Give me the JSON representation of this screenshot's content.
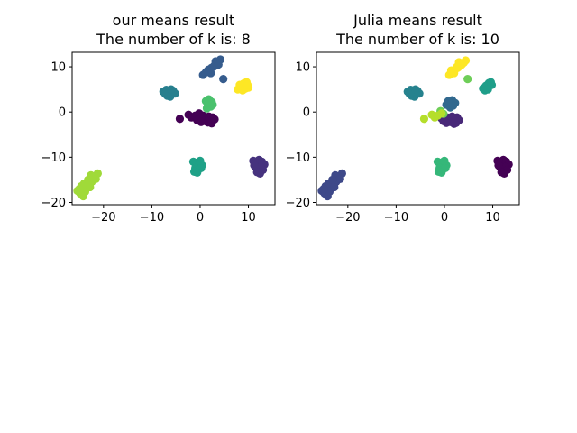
{
  "chart_data": [
    {
      "type": "scatter",
      "title_lines": [
        "our means result",
        "The number of k is: 8"
      ],
      "xlabel": "",
      "ylabel": "",
      "xlim": [
        -26.5,
        15.5
      ],
      "ylim": [
        -20.5,
        13.2
      ],
      "xticks": [
        -20,
        -10,
        0,
        10
      ],
      "yticks": [
        -20,
        -10,
        0,
        10
      ],
      "tick_labels_x": [
        "−20",
        "−10",
        "0",
        "10"
      ],
      "tick_labels_y": [
        "−20",
        "−10",
        "0",
        "10"
      ],
      "grid": false,
      "clusters": [
        {
          "color": "#440154",
          "x": [
            -4.2,
            -2.4,
            -1.8,
            -1.0,
            -0.2,
            0.4,
            1.0,
            1.6,
            2.2,
            2.6,
            0.6,
            -0.6,
            1.8,
            2.4,
            3.0,
            0.2
          ],
          "y": [
            -1.5,
            -0.6,
            -1.2,
            -0.8,
            -0.3,
            -1.6,
            -2.0,
            -2.3,
            -1.8,
            -1.2,
            -0.8,
            -1.8,
            -1.0,
            -2.5,
            -1.6,
            -2.2
          ]
        },
        {
          "color": "#46327e",
          "x": [
            11.0,
            11.6,
            12.2,
            12.8,
            13.3,
            11.4,
            12.0,
            12.6,
            13.0,
            11.8,
            12.4,
            11.2
          ],
          "y": [
            -10.8,
            -11.2,
            -10.6,
            -11.0,
            -11.6,
            -12.0,
            -12.6,
            -12.2,
            -12.8,
            -13.3,
            -13.6,
            -11.8
          ]
        },
        {
          "color": "#365c8d",
          "x": [
            0.6,
            1.2,
            1.8,
            2.4,
            3.0,
            3.6,
            4.2,
            2.2,
            1.6,
            3.2,
            2.8,
            4.8,
            3.8
          ],
          "y": [
            8.2,
            8.8,
            9.4,
            9.8,
            10.3,
            10.9,
            11.6,
            8.6,
            9.2,
            11.2,
            10.0,
            7.3,
            10.5
          ]
        },
        {
          "color": "#277f8e",
          "x": [
            -7.6,
            -7.0,
            -6.4,
            -5.8,
            -5.2,
            -6.8,
            -6.2,
            -5.6,
            -7.2,
            -6.0
          ],
          "y": [
            4.5,
            4.9,
            4.2,
            4.6,
            4.1,
            3.6,
            3.4,
            4.7,
            4.0,
            5.0
          ]
        },
        {
          "color": "#1fa187",
          "x": [
            -1.4,
            -0.8,
            -0.2,
            0.4,
            -1.0,
            -0.4,
            0.2,
            -1.2,
            -0.6,
            0.0
          ],
          "y": [
            -11.0,
            -11.4,
            -11.0,
            -11.8,
            -12.4,
            -12.8,
            -12.4,
            -13.2,
            -13.4,
            -10.8
          ]
        },
        {
          "color": "#4ac16d",
          "x": [
            1.2,
            1.8,
            2.4,
            1.6,
            2.2,
            1.4,
            2.0,
            2.6
          ],
          "y": [
            2.4,
            2.8,
            2.2,
            1.6,
            1.2,
            0.8,
            2.0,
            1.6
          ]
        },
        {
          "color": "#a0da39",
          "x": [
            -25.4,
            -24.8,
            -24.2,
            -23.6,
            -23.0,
            -22.4,
            -21.8,
            -21.2,
            -24.6,
            -23.8,
            -22.6,
            -21.6,
            -24.0,
            -22.8,
            -25.0,
            -23.2
          ],
          "y": [
            -17.4,
            -18.0,
            -18.6,
            -16.8,
            -16.2,
            -15.4,
            -14.6,
            -13.6,
            -16.4,
            -17.6,
            -14.0,
            -14.8,
            -15.8,
            -16.6,
            -17.0,
            -15.0
          ]
        },
        {
          "color": "#fde725",
          "x": [
            7.8,
            8.4,
            9.0,
            9.6,
            10.0,
            8.2,
            8.8,
            9.4,
            9.8
          ],
          "y": [
            5.0,
            5.8,
            6.3,
            6.6,
            5.4,
            6.0,
            4.8,
            5.2,
            6.0
          ]
        }
      ]
    },
    {
      "type": "scatter",
      "title_lines": [
        "Julia means result",
        "The number of k is: 10"
      ],
      "xlabel": "",
      "ylabel": "",
      "xlim": [
        -26.5,
        15.5
      ],
      "ylim": [
        -20.5,
        13.2
      ],
      "xticks": [
        -20,
        -10,
        0,
        10
      ],
      "yticks": [
        -20,
        -10,
        0,
        10
      ],
      "tick_labels_x": [
        "−20",
        "−10",
        "0",
        "10"
      ],
      "tick_labels_y": [
        "−20",
        "−10",
        "0",
        "10"
      ],
      "grid": false,
      "clusters": [
        {
          "color": "#440154",
          "x": [
            11.0,
            11.6,
            12.2,
            12.8,
            13.3,
            11.4,
            12.0,
            12.6,
            13.0,
            11.8,
            12.4,
            11.2
          ],
          "y": [
            -10.8,
            -11.2,
            -10.6,
            -11.0,
            -11.6,
            -12.0,
            -12.6,
            -12.2,
            -12.8,
            -13.3,
            -13.6,
            -11.8
          ]
        },
        {
          "color": "#482878",
          "x": [
            -0.6,
            0.0,
            0.6,
            1.2,
            1.8,
            2.4,
            3.0,
            0.4,
            1.6,
            2.6,
            -0.2,
            2.0
          ],
          "y": [
            -1.4,
            -1.8,
            -1.2,
            -2.2,
            -1.6,
            -2.4,
            -1.8,
            -2.4,
            -1.0,
            -1.2,
            -2.0,
            -2.6
          ]
        },
        {
          "color": "#3e4989",
          "x": [
            -25.4,
            -24.8,
            -24.2,
            -23.6,
            -23.0,
            -22.4,
            -21.8,
            -21.2,
            -24.6,
            -23.8,
            -22.6,
            -21.6,
            -24.0,
            -22.8,
            -25.0,
            -23.2
          ],
          "y": [
            -17.4,
            -18.0,
            -18.6,
            -16.8,
            -16.2,
            -15.4,
            -14.6,
            -13.6,
            -16.4,
            -17.6,
            -14.0,
            -14.8,
            -15.8,
            -16.6,
            -17.0,
            -15.0
          ]
        },
        {
          "color": "#31688e",
          "x": [
            0.4,
            1.0,
            1.6,
            2.2,
            1.2,
            1.8,
            0.8
          ],
          "y": [
            1.6,
            2.2,
            2.6,
            2.0,
            1.0,
            1.4,
            2.4
          ]
        },
        {
          "color": "#26828e",
          "x": [
            -7.6,
            -7.0,
            -6.4,
            -5.8,
            -5.2,
            -6.8,
            -6.2,
            -5.6,
            -7.2,
            -6.0
          ],
          "y": [
            4.5,
            4.9,
            4.2,
            4.6,
            4.1,
            3.6,
            3.4,
            4.7,
            4.0,
            5.0
          ]
        },
        {
          "color": "#1f9e89",
          "x": [
            8.0,
            8.6,
            9.2,
            9.8,
            8.4,
            9.0,
            9.6
          ],
          "y": [
            5.2,
            5.8,
            6.4,
            6.0,
            4.8,
            5.0,
            6.6
          ]
        },
        {
          "color": "#35b779",
          "x": [
            -1.4,
            -0.8,
            -0.2,
            0.4,
            -1.0,
            -0.4,
            0.2,
            -1.2,
            -0.6,
            0.0
          ],
          "y": [
            -11.0,
            -11.4,
            -11.0,
            -11.8,
            -12.4,
            -12.8,
            -12.4,
            -13.2,
            -13.4,
            -10.8
          ]
        },
        {
          "color": "#6ece58",
          "x": [
            4.8,
            -0.2,
            -0.8
          ],
          "y": [
            7.3,
            -0.4,
            0.2
          ]
        },
        {
          "color": "#b5de2b",
          "x": [
            -4.2,
            -2.6,
            -2.0,
            -1.4,
            -0.6
          ],
          "y": [
            -1.5,
            -0.6,
            -1.2,
            -0.8,
            -0.3
          ]
        },
        {
          "color": "#fde725",
          "x": [
            1.0,
            1.6,
            2.2,
            2.8,
            3.4,
            4.0,
            4.4,
            2.0,
            1.4,
            3.0,
            2.6,
            3.6
          ],
          "y": [
            8.2,
            8.8,
            9.4,
            9.8,
            10.3,
            10.9,
            11.4,
            8.6,
            9.2,
            11.0,
            10.0,
            10.5
          ]
        }
      ]
    }
  ]
}
